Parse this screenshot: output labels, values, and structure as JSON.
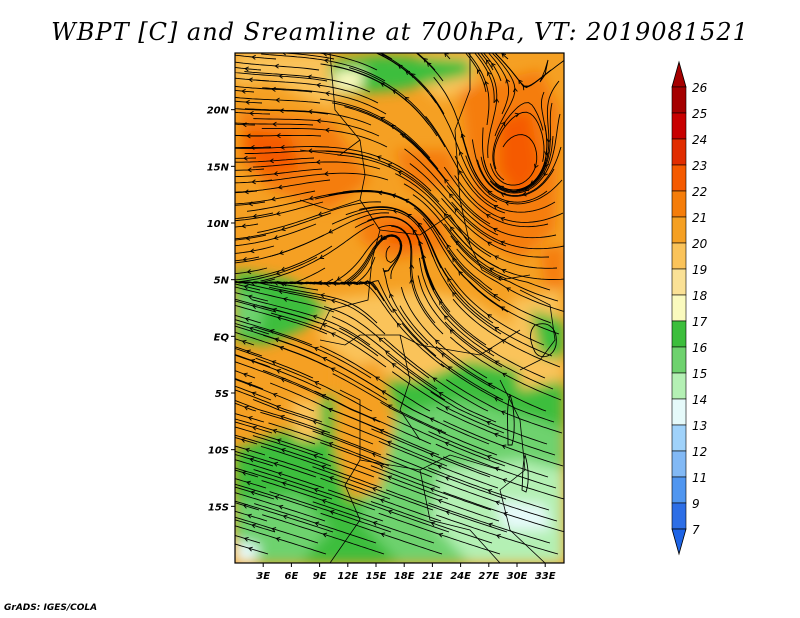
{
  "title": "WBPT [C] and Sreamline at 700hPa, VT: 2019081521",
  "footer": "GrADS: IGES/COLA",
  "chart_data": {
    "type": "heatmap",
    "title": "WBPT [C] and Sreamline at 700hPa, VT: 2019081521",
    "variable": "WBPT [C]",
    "level": "700hPa",
    "valid_time": "2019081521",
    "xlim": [
      0,
      35
    ],
    "ylim": [
      -20,
      25
    ],
    "x_ticks": [
      {
        "value": 3,
        "label": "3E"
      },
      {
        "value": 6,
        "label": "6E"
      },
      {
        "value": 9,
        "label": "9E"
      },
      {
        "value": 12,
        "label": "12E"
      },
      {
        "value": 15,
        "label": "15E"
      },
      {
        "value": 18,
        "label": "18E"
      },
      {
        "value": 21,
        "label": "21E"
      },
      {
        "value": 24,
        "label": "24E"
      },
      {
        "value": 27,
        "label": "27E"
      },
      {
        "value": 30,
        "label": "30E"
      },
      {
        "value": 33,
        "label": "33E"
      }
    ],
    "y_ticks": [
      {
        "value": 20,
        "label": "20N"
      },
      {
        "value": 15,
        "label": "15N"
      },
      {
        "value": 10,
        "label": "10N"
      },
      {
        "value": 5,
        "label": "5N"
      },
      {
        "value": 0,
        "label": "EQ"
      },
      {
        "value": -5,
        "label": "5S"
      },
      {
        "value": -10,
        "label": "10S"
      },
      {
        "value": -15,
        "label": "15S"
      }
    ],
    "legend": {
      "placement": "right",
      "levels": [
        "26",
        "25",
        "24",
        "23",
        "22",
        "21",
        "20",
        "19",
        "18",
        "17",
        "16",
        "15",
        "14",
        "13",
        "12",
        "11",
        "9",
        "7"
      ],
      "colors": [
        "#a50000",
        "#c80000",
        "#e12d00",
        "#f55a00",
        "#f57d0a",
        "#f5a023",
        "#fac35a",
        "#fae196",
        "#fafabe",
        "#3cbe3c",
        "#6ed26e",
        "#b4f0b4",
        "#e6fafa",
        "#a0d2fa",
        "#82b9f5",
        "#5096f0",
        "#2d6ee6",
        "#0a50d7"
      ],
      "top_color": "#a50000",
      "bottom_color": "#1e64e6"
    }
  }
}
